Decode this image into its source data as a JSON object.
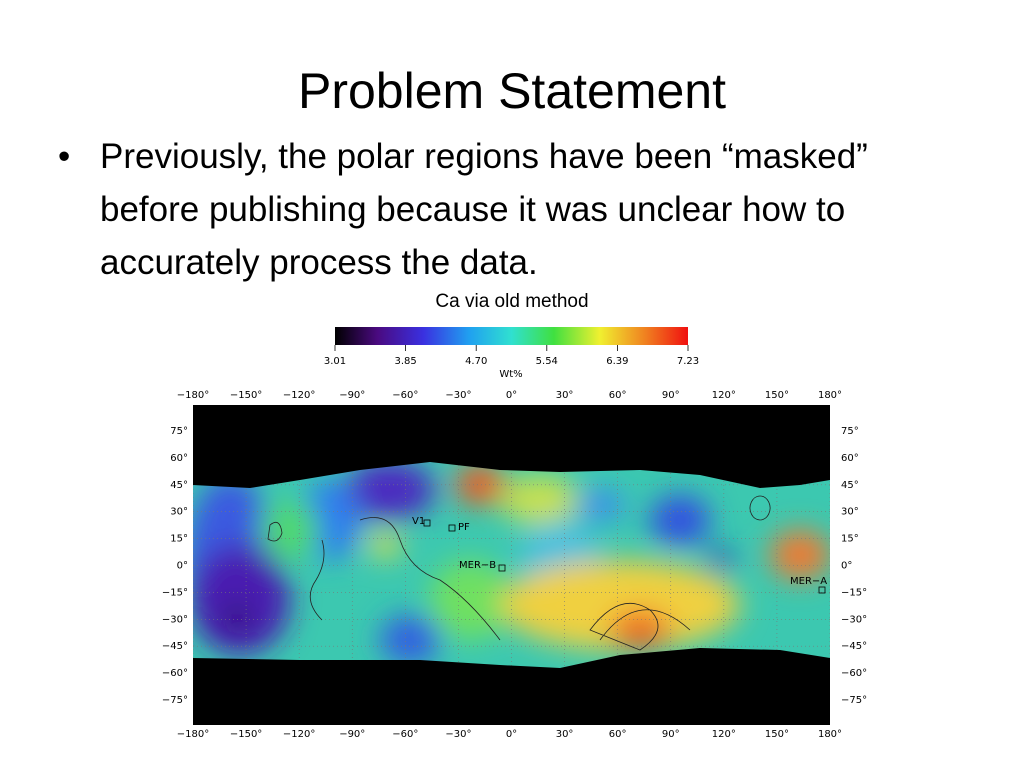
{
  "title": "Problem Statement",
  "bullets": [
    "Previously, the polar regions have been “masked” before publishing because it was unclear how to accurately process the data."
  ],
  "figure": {
    "caption": "Ca via old method",
    "colorbar": {
      "labels": [
        "3.01",
        "3.85",
        "4.70",
        "5.54",
        "6.39",
        "7.23"
      ],
      "unit": "Wt%"
    },
    "x_labels": [
      "−180°",
      "−150°",
      "−120°",
      "−90°",
      "−60°",
      "−30°",
      "0°",
      "30°",
      "60°",
      "90°",
      "120°",
      "150°",
      "180°"
    ],
    "y_labels": [
      "75°",
      "60°",
      "45°",
      "30°",
      "15°",
      "0°",
      "−15°",
      "−30°",
      "−45°",
      "−60°",
      "−75°"
    ],
    "sites": [
      "V1",
      "PF",
      "MER−B",
      "MER−A"
    ]
  }
}
